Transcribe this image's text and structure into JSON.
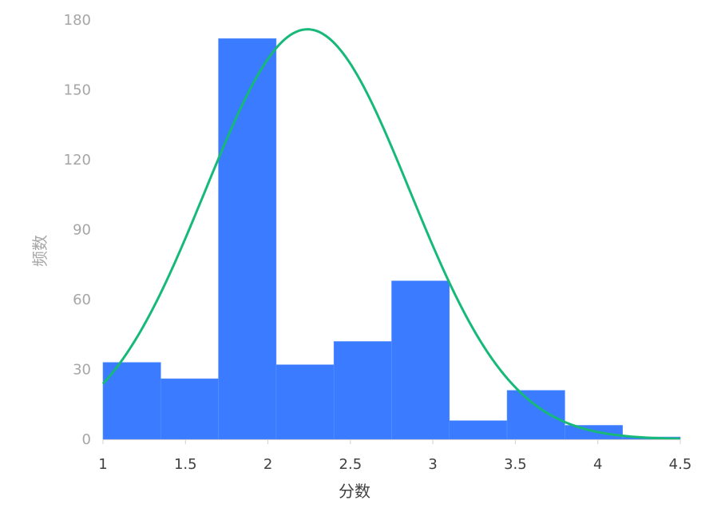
{
  "chart_data": {
    "type": "bar",
    "title": "",
    "xlabel": "分数",
    "ylabel": "频数",
    "xlim": [
      1,
      4.5
    ],
    "ylim": [
      0,
      180
    ],
    "x_ticks": [
      "1",
      "1.5",
      "2",
      "2.5",
      "3",
      "3.5",
      "4",
      "4.5"
    ],
    "y_ticks": [
      "0",
      "30",
      "60",
      "90",
      "120",
      "150",
      "180"
    ],
    "bar_color": "#3a7bff",
    "curve_color": "#17b978",
    "bins": [
      {
        "start": 1.0,
        "end": 1.35,
        "count": 33
      },
      {
        "start": 1.35,
        "end": 1.7,
        "count": 26
      },
      {
        "start": 1.7,
        "end": 2.05,
        "count": 172
      },
      {
        "start": 2.05,
        "end": 2.4,
        "count": 32
      },
      {
        "start": 2.4,
        "end": 2.75,
        "count": 42
      },
      {
        "start": 2.75,
        "end": 3.1,
        "count": 68
      },
      {
        "start": 3.1,
        "end": 3.45,
        "count": 8
      },
      {
        "start": 3.45,
        "end": 3.8,
        "count": 21
      },
      {
        "start": 3.8,
        "end": 4.15,
        "count": 6
      },
      {
        "start": 4.15,
        "end": 4.5,
        "count": 1
      }
    ],
    "normal_curve": {
      "mean": 2.24,
      "sd": 0.62,
      "peak": 176
    }
  }
}
